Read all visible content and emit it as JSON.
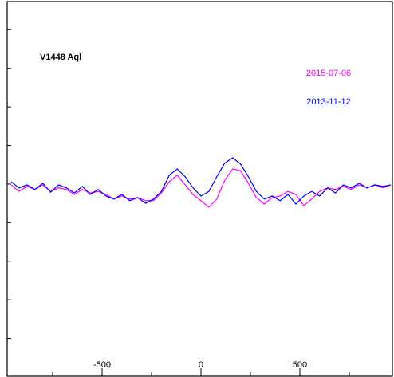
{
  "chart_data": {
    "type": "line",
    "annotation": "V1448 Aql",
    "x": [
      -960,
      -920,
      -880,
      -840,
      -800,
      -760,
      -720,
      -680,
      -640,
      -600,
      -560,
      -520,
      -480,
      -440,
      -400,
      -360,
      -320,
      -280,
      -240,
      -200,
      -160,
      -120,
      -80,
      -40,
      0,
      40,
      80,
      120,
      160,
      200,
      240,
      280,
      320,
      360,
      400,
      440,
      480,
      520,
      560,
      600,
      640,
      680,
      720,
      760,
      800,
      840,
      880,
      920,
      960
    ],
    "series": [
      {
        "name": "2015-07-06",
        "color": "#ff00ff",
        "values": [
          0.998,
          0.981,
          0.994,
          0.986,
          0.998,
          0.981,
          0.99,
          0.986,
          0.973,
          0.986,
          0.977,
          0.981,
          0.973,
          0.961,
          0.969,
          0.961,
          0.965,
          0.957,
          0.957,
          0.977,
          1.006,
          1.023,
          0.998,
          0.973,
          0.957,
          0.94,
          0.961,
          1.01,
          1.039,
          1.035,
          1.002,
          0.965,
          0.948,
          0.965,
          0.969,
          0.981,
          0.973,
          0.944,
          0.961,
          0.981,
          0.99,
          0.986,
          0.994,
          0.986,
          0.998,
          0.99,
          0.998,
          0.99,
          0.998
        ]
      },
      {
        "name": "2013-11-12",
        "color": "#0000ff",
        "values": [
          1.006,
          0.99,
          0.998,
          0.986,
          1.002,
          0.979,
          0.998,
          0.99,
          0.977,
          0.994,
          0.973,
          0.986,
          0.969,
          0.961,
          0.973,
          0.957,
          0.965,
          0.95,
          0.961,
          0.981,
          1.023,
          1.039,
          1.019,
          0.99,
          0.969,
          0.981,
          1.019,
          1.054,
          1.068,
          1.052,
          1.019,
          0.981,
          0.961,
          0.969,
          0.957,
          0.973,
          0.948,
          0.969,
          0.981,
          0.969,
          0.99,
          0.977,
          0.998,
          0.99,
          1.002,
          0.99,
          0.998,
          0.994,
          0.998
        ]
      }
    ],
    "xlim": [
      -980,
      968
    ],
    "xticks": [
      -500,
      0,
      500
    ],
    "xminorticks": [
      -750,
      -250,
      250,
      750
    ],
    "ylim": [
      0.502,
      1.473
    ],
    "yticks": [
      0.6,
      0.7,
      0.8,
      0.9,
      1.0,
      1.1,
      1.2,
      1.3,
      1.4
    ]
  }
}
